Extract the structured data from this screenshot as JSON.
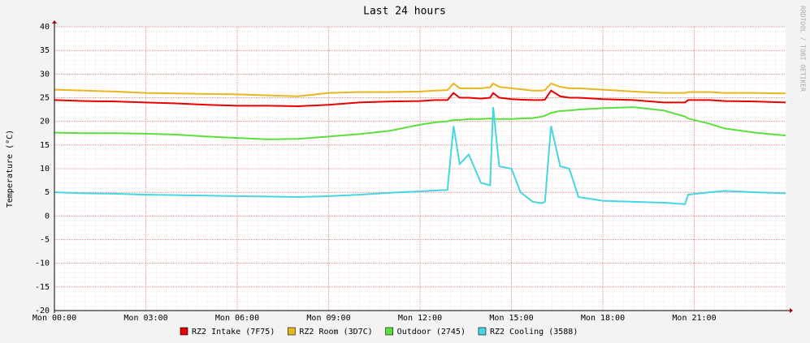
{
  "chart_data": {
    "type": "line",
    "title": "Last 24 hours",
    "ylabel": "Temperature (°C)",
    "side_note": "RRDTOOL / TOBI OETIKER",
    "x": [
      0,
      1,
      2,
      3,
      4,
      5,
      6,
      7,
      8,
      9,
      10,
      11,
      12,
      12.5,
      12.9,
      13.1,
      13.3,
      13.6,
      14,
      14.3,
      14.4,
      14.6,
      15,
      15.3,
      15.7,
      16,
      16.1,
      16.3,
      16.6,
      16.9,
      17.2,
      18,
      19,
      20,
      20.7,
      20.8,
      21.5,
      22,
      23,
      24
    ],
    "xlim": [
      0,
      24
    ],
    "xticks": [
      {
        "value": 0,
        "label": "Mon 00:00"
      },
      {
        "value": 3,
        "label": "Mon 03:00"
      },
      {
        "value": 6,
        "label": "Mon 06:00"
      },
      {
        "value": 9,
        "label": "Mon 09:00"
      },
      {
        "value": 12,
        "label": "Mon 12:00"
      },
      {
        "value": 15,
        "label": "Mon 15:00"
      },
      {
        "value": 18,
        "label": "Mon 18:00"
      },
      {
        "value": 21,
        "label": "Mon 21:00"
      }
    ],
    "ylim": [
      -20,
      40
    ],
    "yticks": [
      -20,
      -15,
      -10,
      -5,
      0,
      5,
      10,
      15,
      20,
      25,
      30,
      35,
      40
    ],
    "grid": true,
    "series": [
      {
        "name": "RZ2 Intake (7F75)",
        "color": "#e80000",
        "values": [
          24.5,
          24.3,
          24.2,
          24,
          23.8,
          23.5,
          23.3,
          23.3,
          23.2,
          23.5,
          24,
          24.2,
          24.3,
          24.5,
          24.5,
          26,
          25,
          25,
          24.8,
          25,
          26,
          25,
          24.7,
          24.6,
          24.5,
          24.5,
          24.6,
          26.5,
          25.3,
          25,
          25,
          24.7,
          24.5,
          24,
          24,
          24.5,
          24.5,
          24.3,
          24.2,
          24
        ]
      },
      {
        "name": "RZ2 Room (3D7C)",
        "color": "#e6b71e",
        "values": [
          26.7,
          26.5,
          26.3,
          26,
          25.9,
          25.8,
          25.7,
          25.5,
          25.3,
          26,
          26.2,
          26.2,
          26.3,
          26.5,
          26.6,
          28,
          27,
          27,
          27,
          27.2,
          28,
          27.3,
          27,
          26.8,
          26.5,
          26.5,
          26.6,
          28,
          27.3,
          27,
          27,
          26.7,
          26.3,
          26,
          26,
          26.2,
          26.2,
          26,
          26,
          25.9
        ]
      },
      {
        "name": "Outdoor (2745)",
        "color": "#5ae03c",
        "values": [
          17.6,
          17.5,
          17.5,
          17.4,
          17.2,
          16.8,
          16.5,
          16.2,
          16.3,
          16.8,
          17.3,
          18,
          19.3,
          19.8,
          20,
          20.3,
          20.3,
          20.5,
          20.5,
          20.6,
          20.5,
          20.5,
          20.5,
          20.6,
          20.7,
          21,
          21.2,
          21.8,
          22.2,
          22.3,
          22.5,
          22.8,
          23,
          22.3,
          21,
          20.6,
          19.5,
          18.5,
          17.6,
          17
        ]
      },
      {
        "name": "RZ2 Cooling (3588)",
        "color": "#45d6e0",
        "values": [
          5,
          4.8,
          4.7,
          4.5,
          4.4,
          4.3,
          4.2,
          4.1,
          4,
          4.2,
          4.5,
          4.9,
          5.2,
          5.4,
          5.5,
          19,
          11,
          13,
          7,
          6.5,
          23,
          10.5,
          10,
          5,
          3,
          2.7,
          3,
          19,
          10.5,
          10,
          4,
          3.2,
          3,
          2.8,
          2.5,
          4.5,
          5,
          5.3,
          5,
          4.8
        ]
      }
    ]
  }
}
